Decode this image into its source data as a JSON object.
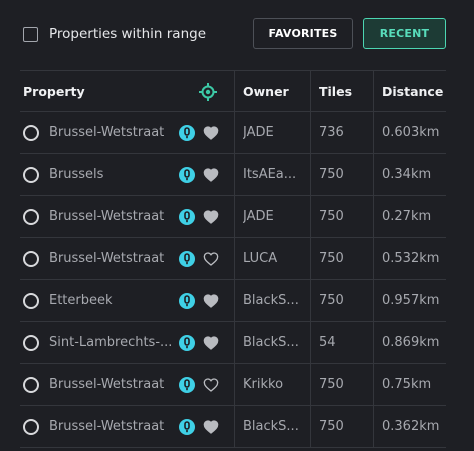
{
  "filter": {
    "label": "Properties within range",
    "checked": false
  },
  "buttons": {
    "favorites": "FAVORITES",
    "recent": "RECENT"
  },
  "colors": {
    "accent": "#4cd6b2",
    "cyan_icon": "#3fd0e6",
    "target_icon": "#3cc9a6"
  },
  "table": {
    "headers": {
      "property": "Property",
      "locate_icon": "crosshair-icon",
      "owner": "Owner",
      "tiles": "Tiles",
      "distance": "Distance"
    },
    "rows": [
      {
        "property": "Brussel-Wetstraat",
        "favorite": true,
        "owner": "JADE",
        "tiles": "736",
        "distance": "0.603km"
      },
      {
        "property": "Brussels",
        "favorite": true,
        "owner": "ItsAEa...",
        "tiles": "750",
        "distance": "0.34km"
      },
      {
        "property": "Brussel-Wetstraat",
        "favorite": true,
        "owner": "JADE",
        "tiles": "750",
        "distance": "0.27km"
      },
      {
        "property": "Brussel-Wetstraat",
        "favorite": false,
        "owner": "LUCA",
        "tiles": "750",
        "distance": "0.532km"
      },
      {
        "property": "Etterbeek",
        "favorite": true,
        "owner": "BlackS...",
        "tiles": "750",
        "distance": "0.957km"
      },
      {
        "property": "Sint-Lambrechts-...",
        "favorite": true,
        "owner": "BlackS...",
        "tiles": "54",
        "distance": "0.869km"
      },
      {
        "property": "Brussel-Wetstraat",
        "favorite": false,
        "owner": "Krikko",
        "tiles": "750",
        "distance": "0.75km"
      },
      {
        "property": "Brussel-Wetstraat",
        "favorite": true,
        "owner": "BlackS...",
        "tiles": "750",
        "distance": "0.362km"
      }
    ]
  }
}
